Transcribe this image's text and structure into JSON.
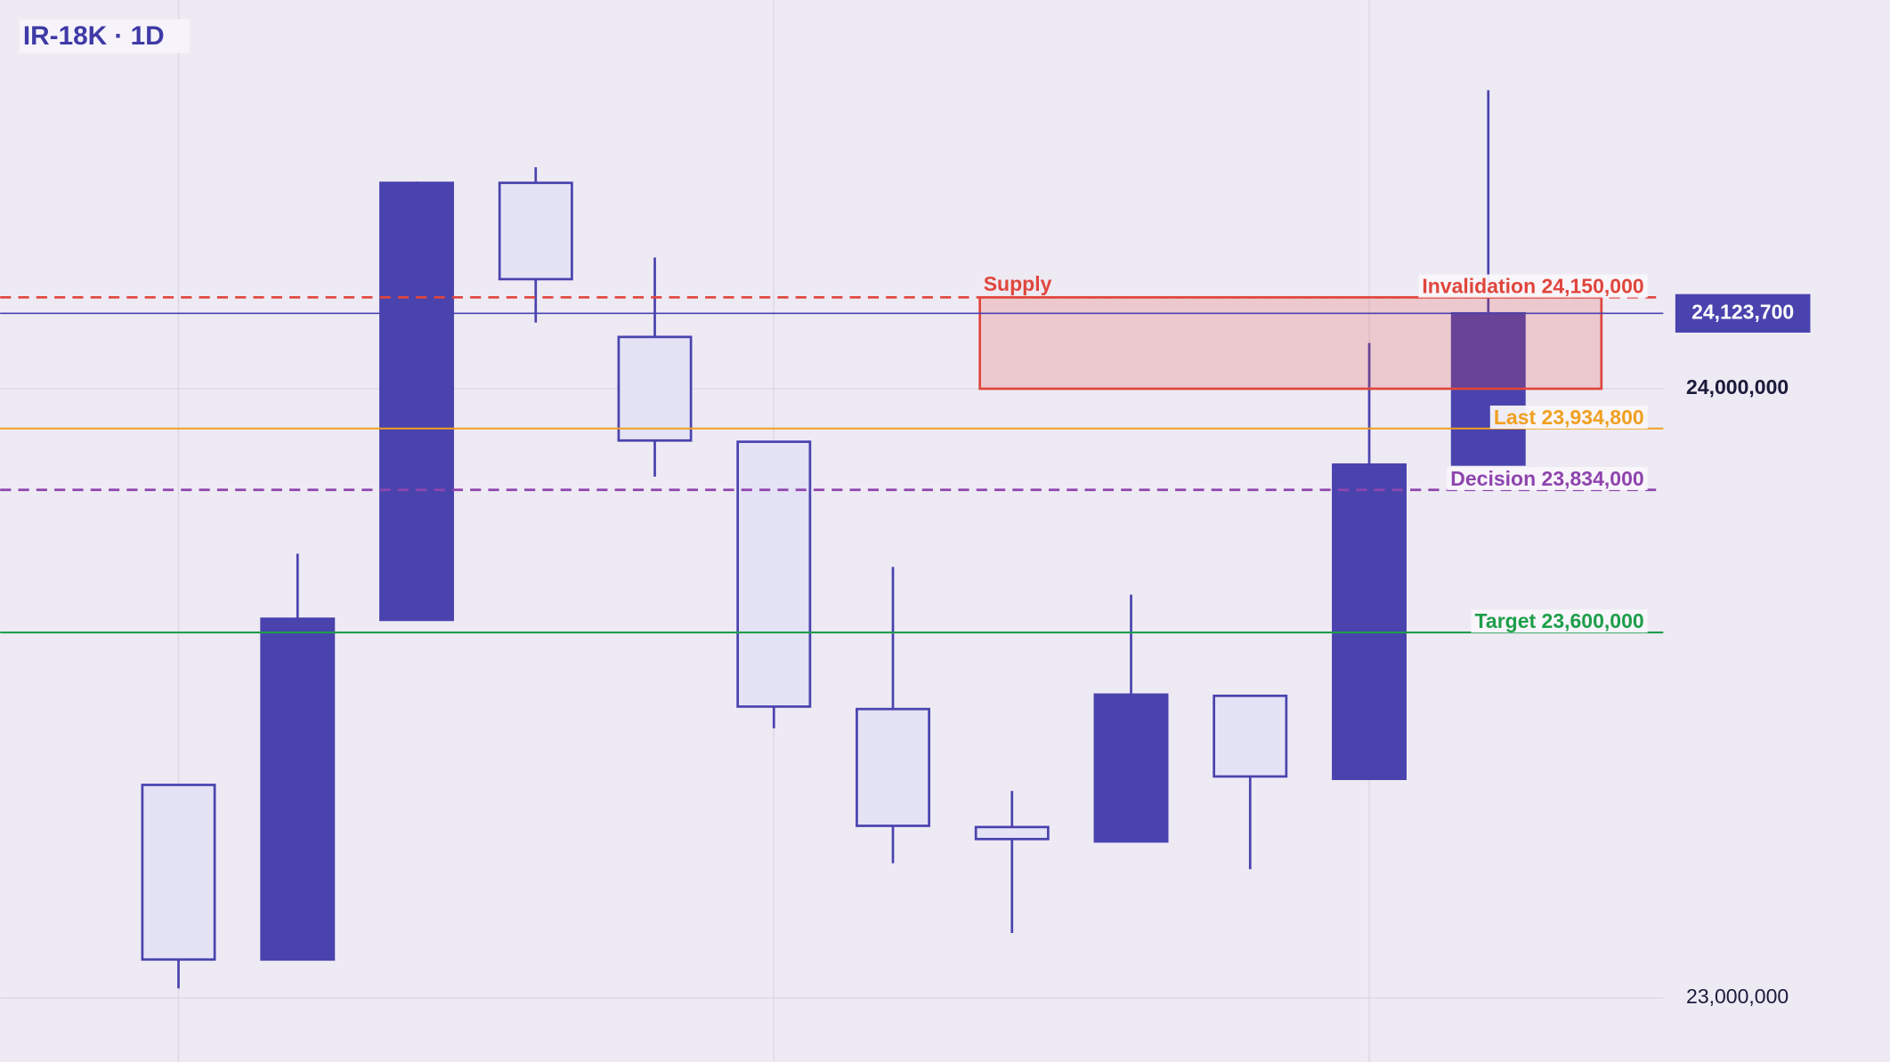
{
  "chart_data": {
    "type": "candlestick",
    "title": "IR-18K · 1D",
    "open": [
      23349800,
      23063200,
      23620600,
      24337900,
      24085000,
      23913000,
      23474300,
      23280600,
      23256900,
      23496000,
      23359700,
      23875500
    ],
    "high": [
      23349800,
      23729200,
      24339900,
      24363600,
      24215400,
      23913000,
      23707500,
      23339900,
      23662000,
      23496000,
      24075100,
      24490100
    ],
    "low": [
      23015800,
      23063200,
      23620600,
      24108700,
      23855700,
      23442700,
      23221300,
      23106700,
      23256900,
      23211500,
      23359700,
      23875500
    ],
    "close": [
      23063200,
      23622500,
      24337900,
      24179800,
      23915000,
      23478300,
      23282600,
      23260900,
      23498000,
      23363600,
      23875500,
      24123700
    ],
    "up_color": "#4a43ae",
    "down_color": "#e4e2f5",
    "ylim": [
      22895000,
      24638000
    ],
    "yticks": [
      {
        "value": 23000000,
        "label": "23,000,000"
      },
      {
        "value": 24000000,
        "label": "24,000,000"
      }
    ],
    "grid": true,
    "zone": {
      "name": "Supply",
      "from": 24000000,
      "to": 24150000,
      "color": "#e0463c"
    },
    "levels": [
      {
        "name": "Invalidation",
        "value": 24150000,
        "value_label": "24,150,000",
        "color": "#e0463c",
        "dashed": true
      },
      {
        "name": "Last",
        "value": 23934800,
        "value_label": "23,934,800",
        "color": "#f0a020",
        "dashed": false
      },
      {
        "name": "Decision",
        "value": 23834000,
        "value_label": "23,834,000",
        "color": "#8e44ad",
        "dashed": true
      },
      {
        "name": "Target",
        "value": 23600000,
        "value_label": "23,600,000",
        "color": "#1e9e4a",
        "dashed": false
      }
    ],
    "price_tag": {
      "value": 24123700,
      "label": "24,123,700",
      "color": "#4a43ae"
    }
  }
}
